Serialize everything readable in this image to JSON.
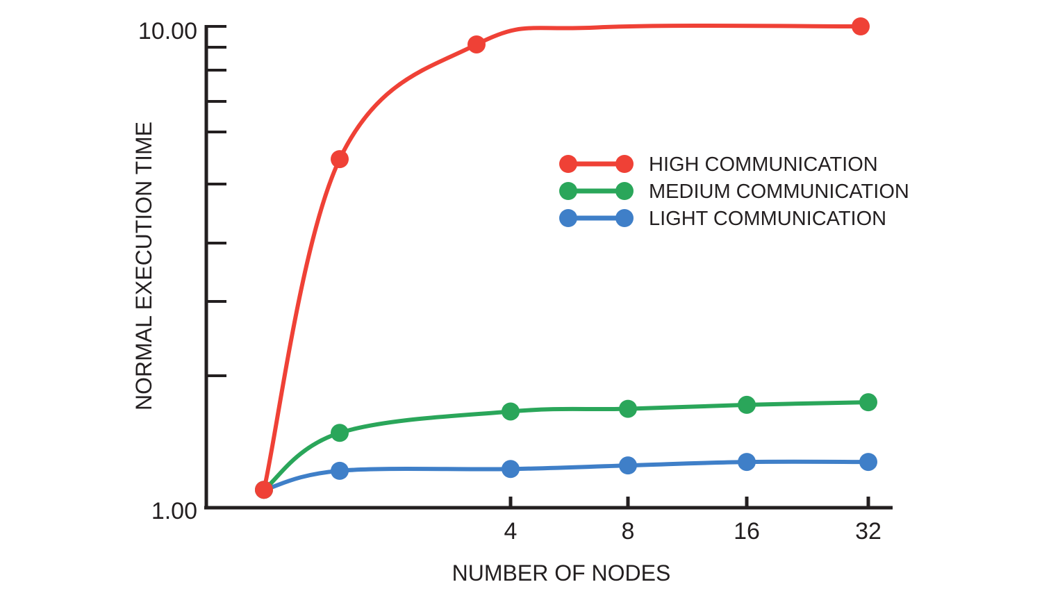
{
  "chart_data": {
    "type": "line",
    "title": "",
    "xlabel": "NUMBER OF NODES",
    "ylabel": "NORMAL EXECUTION TIME",
    "x_scale": "log2",
    "x": [
      1,
      2,
      4,
      8,
      16,
      32
    ],
    "x_tick_labels": [
      "4",
      "8",
      "16",
      "32"
    ],
    "x_tick_values": [
      4,
      8,
      16,
      32
    ],
    "y_scale": "log",
    "ylim": [
      1.0,
      10.0
    ],
    "y_tick_labels": [
      "10.00",
      "1.00"
    ],
    "y_tick_values": [
      10.0,
      1.0
    ],
    "legend_position": "top-right",
    "grid": false,
    "series": [
      {
        "name": "HIGH COMMUNICATION",
        "color": "#ef4136",
        "values": [
          1.02,
          5.2,
          9.15,
          null,
          null,
          10.0
        ]
      },
      {
        "name": "MEDIUM COMMUNICATION",
        "color": "#2aa65a",
        "values": [
          1.02,
          1.35,
          1.5,
          1.52,
          1.55,
          1.57
        ]
      },
      {
        "name": "LIGHT COMMUNICATION",
        "color": "#3f7fc8",
        "values": [
          1.02,
          1.12,
          1.13,
          1.15,
          1.17,
          1.17
        ]
      }
    ]
  }
}
